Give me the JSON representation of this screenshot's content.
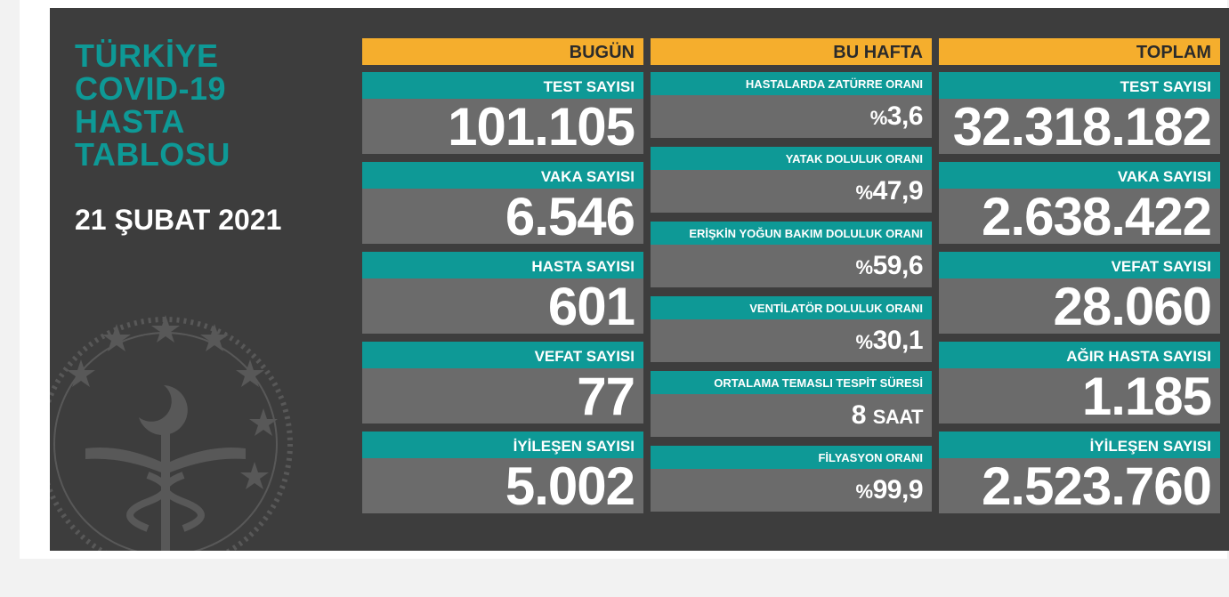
{
  "title_lines": [
    "TÜRKİYE",
    "COVID-19",
    "HASTA",
    "TABLOSU"
  ],
  "date": "21 ŞUBAT 2021",
  "colors": {
    "teal": "#0e9996",
    "orange": "#f5ae2d",
    "panel": "#3d3d3d",
    "card": "#6b6b6b"
  },
  "today": {
    "header": "BUGÜN",
    "items": [
      {
        "label": "TEST SAYISI",
        "value": "101.105"
      },
      {
        "label": "VAKA SAYISI",
        "value": "6.546"
      },
      {
        "label": "HASTA SAYISI",
        "value": "601"
      },
      {
        "label": "VEFAT SAYISI",
        "value": "77"
      },
      {
        "label": "İYİLEŞEN SAYISI",
        "value": "5.002"
      }
    ]
  },
  "week": {
    "header": "BU HAFTA",
    "items": [
      {
        "label": "HASTALARDA ZATÜRRE ORANI",
        "prefix": "%",
        "value": "3,6",
        "unit": ""
      },
      {
        "label": "YATAK DOLULUK ORANI",
        "prefix": "%",
        "value": "47,9",
        "unit": ""
      },
      {
        "label": "ERİŞKİN YOĞUN BAKIM DOLULUK ORANI",
        "prefix": "%",
        "value": "59,6",
        "unit": ""
      },
      {
        "label": "VENTİLATÖR DOLULUK ORANI",
        "prefix": "%",
        "value": "30,1",
        "unit": ""
      },
      {
        "label": "ORTALAMA TEMASLI TESPİT SÜRESİ",
        "prefix": "",
        "value": "8",
        "unit": "SAAT"
      },
      {
        "label": "FİLYASYON ORANI",
        "prefix": "%",
        "value": "99,9",
        "unit": ""
      }
    ]
  },
  "total": {
    "header": "TOPLAM",
    "items": [
      {
        "label": "TEST SAYISI",
        "value": "32.318.182"
      },
      {
        "label": "VAKA SAYISI",
        "value": "2.638.422"
      },
      {
        "label": "VEFAT SAYISI",
        "value": "28.060"
      },
      {
        "label": "AĞIR HASTA SAYISI",
        "value": "1.185"
      },
      {
        "label": "İYİLEŞEN SAYISI",
        "value": "2.523.760"
      }
    ]
  }
}
